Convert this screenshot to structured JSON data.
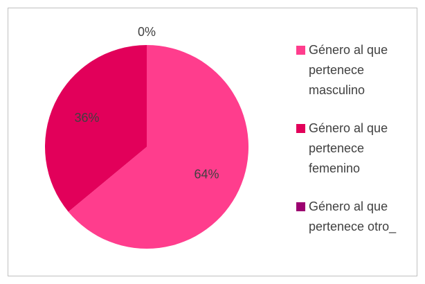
{
  "chart_data": {
    "type": "pie",
    "categories": [
      "Género al que pertenece masculino",
      "Género al que pertenece femenino",
      "Género al que pertenece otro_"
    ],
    "values": [
      64,
      36,
      0
    ],
    "value_labels": [
      "64%",
      "36%",
      "0%"
    ],
    "colors": [
      "#ff3d8d",
      "#e2005a",
      "#9c0070"
    ],
    "legend": "right"
  }
}
